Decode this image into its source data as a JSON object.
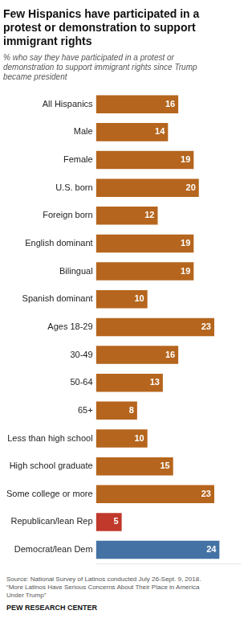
{
  "chart_data": {
    "type": "bar",
    "orientation": "horizontal",
    "title": "Few Hispanics have participated in a\nprotest or demonstration to support\nimmigrant rights",
    "subtitle": "% who say they have participated in a protest or\ndemonstration to support immigrant rights since Trump\nbecame president",
    "categories": [
      "All Hispanics",
      "Male",
      "Female",
      "U.S. born",
      "Foreign born",
      "English dominant",
      "Bilingual",
      "Spanish dominant",
      "Ages 18-29",
      "30-49",
      "50-64",
      "65+",
      "Less than high school",
      "High school graduate",
      "Some college or more",
      "Republican/lean Rep",
      "Democrat/lean Dem"
    ],
    "values": [
      16,
      14,
      19,
      20,
      12,
      19,
      19,
      10,
      23,
      16,
      13,
      8,
      10,
      15,
      23,
      5,
      24
    ],
    "colors": [
      "#b5651d",
      "#b5651d",
      "#b5651d",
      "#b5651d",
      "#b5651d",
      "#b5651d",
      "#b5651d",
      "#b5651d",
      "#b5651d",
      "#b5651d",
      "#b5651d",
      "#b5651d",
      "#b5651d",
      "#b5651d",
      "#b5651d",
      "#c0392b",
      "#4472a4"
    ],
    "xlim": [
      0,
      28
    ],
    "grid": false,
    "data_labels": true,
    "tick_labels": "y",
    "annotations": [
      "Source: National Survey of Latinos conducted July 26-Sept. 9, 2018.\n“More Latinos Have Serious Concerns About Their Place in America\nUnder Trump”",
      "PEW RESEARCH CENTER"
    ]
  }
}
